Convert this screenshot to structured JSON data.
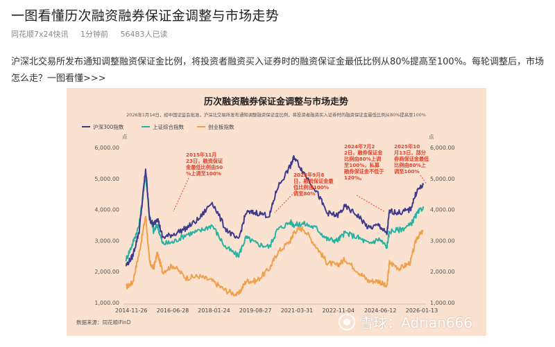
{
  "article": {
    "title": "一图看懂历次融资融券保证金调整与市场走势",
    "source": "同花顺7x24快讯",
    "time": "1分钟前",
    "reads": "56483人已读",
    "paragraph": "沪深北交易所发布通知调整融资保证金比例，将投资者融资买入证券时的融资保证金最低比例从80%提高至100%。每轮调整后，市场怎么走？一图看懂>>>"
  },
  "watermark": {
    "text": "雪球：Adrian666"
  },
  "colors": {
    "hs300": "#3d3a8c",
    "sz": "#27b3a4",
    "cyb": "#f0a04b",
    "annot": "#e0442d",
    "bg": "#fbe1d0"
  },
  "chart_data": {
    "type": "line",
    "title": "历次融资融券保证金调整与市场走势",
    "subtitle": "2026年1月14日，经中国证监会批准，沪深北交易所发布通知调整融资保证金比例，将投资者融资买入证券时的融资保证金最低比例从80%提高至100%",
    "unit_left": "点",
    "unit_right": "点",
    "source": "数据来源：同花顺iFinD",
    "ylim": [
      1000,
      6000
    ],
    "yticks": [
      "1,000.00",
      "2,000.00",
      "3,000.00",
      "4,000.00",
      "5,000.00",
      "6,000.00"
    ],
    "x_ticks": [
      "2014-11-26",
      "2016-06-28",
      "2018-01-24",
      "2019-08-27",
      "2021-03-31",
      "2022-11-04",
      "2024-06-12",
      "2026-01-13"
    ],
    "x_tick_t": [
      2014.9,
      2016.49,
      2018.07,
      2019.66,
      2021.25,
      2022.84,
      2024.45,
      2026.04
    ],
    "xlim": [
      2014.6,
      2026.2
    ],
    "legend": [
      "沪深300指数",
      "上证综合指数",
      "创业板指数"
    ],
    "series": [
      {
        "name": "沪深300指数",
        "x": [
          2014.7,
          2014.95,
          2015.2,
          2015.45,
          2015.6,
          2015.75,
          2015.9,
          2016.1,
          2016.5,
          2017.0,
          2017.5,
          2018.0,
          2018.5,
          2019.0,
          2019.3,
          2019.7,
          2020.2,
          2020.5,
          2021.0,
          2021.15,
          2021.5,
          2022.0,
          2022.4,
          2022.8,
          2023.1,
          2023.6,
          2024.0,
          2024.4,
          2024.7,
          2024.8,
          2025.2,
          2025.6,
          2025.85,
          2026.1
        ],
        "values": [
          2200,
          2500,
          3300,
          5300,
          3700,
          3500,
          3750,
          3100,
          3200,
          3400,
          3700,
          4250,
          3400,
          3000,
          3900,
          3900,
          3800,
          4700,
          5400,
          5700,
          5200,
          4600,
          3900,
          3800,
          4100,
          3800,
          3400,
          3500,
          3200,
          3950,
          3900,
          4000,
          4600,
          4800
        ]
      },
      {
        "name": "上证综合指数",
        "x": [
          2014.7,
          2014.95,
          2015.2,
          2015.45,
          2015.6,
          2015.75,
          2015.9,
          2016.1,
          2016.5,
          2017.0,
          2017.5,
          2018.0,
          2018.5,
          2019.0,
          2019.3,
          2019.7,
          2020.2,
          2020.5,
          2021.0,
          2021.15,
          2021.5,
          2022.0,
          2022.4,
          2022.8,
          2023.1,
          2023.6,
          2024.0,
          2024.4,
          2024.7,
          2024.8,
          2025.2,
          2025.6,
          2025.85,
          2026.1
        ],
        "values": [
          2400,
          2900,
          3500,
          5100,
          3800,
          3300,
          3500,
          2900,
          2950,
          3200,
          3300,
          3500,
          2800,
          2500,
          3100,
          2900,
          2800,
          3350,
          3600,
          3500,
          3550,
          3400,
          3050,
          3000,
          3250,
          3100,
          2900,
          3050,
          2800,
          3300,
          3350,
          3500,
          3850,
          4100
        ]
      },
      {
        "name": "创业板指数",
        "x": [
          2014.7,
          2014.95,
          2015.2,
          2015.45,
          2015.6,
          2015.75,
          2015.9,
          2016.1,
          2016.5,
          2017.0,
          2017.5,
          2018.0,
          2018.5,
          2019.0,
          2019.3,
          2019.7,
          2020.2,
          2020.5,
          2021.0,
          2021.15,
          2021.5,
          2022.0,
          2022.4,
          2022.8,
          2023.1,
          2023.6,
          2024.0,
          2024.4,
          2024.7,
          2024.8,
          2025.2,
          2025.6,
          2025.85,
          2026.1
        ],
        "values": [
          1500,
          1650,
          2600,
          3800,
          2300,
          2100,
          2600,
          2000,
          2200,
          1800,
          1850,
          1700,
          1400,
          1250,
          1700,
          1700,
          2100,
          2600,
          3000,
          3300,
          3400,
          2800,
          2300,
          2200,
          2400,
          2000,
          1700,
          1700,
          1500,
          2300,
          2100,
          2300,
          3100,
          3300
        ]
      }
    ],
    "annotations": [
      {
        "text": "2015年11月23日，融资保证金最低比例由50%上调至100%"
      },
      {
        "text": "2023年9月8日，融资保证金最低比例由100%调至80%"
      },
      {
        "text": "2024年7月22日，融券保证金比例由80%上调至100%，私募融券保证金不低于120%。"
      },
      {
        "text": "2025年10月13日，部分券商保证金最低比例由80%上调至100%"
      }
    ]
  }
}
